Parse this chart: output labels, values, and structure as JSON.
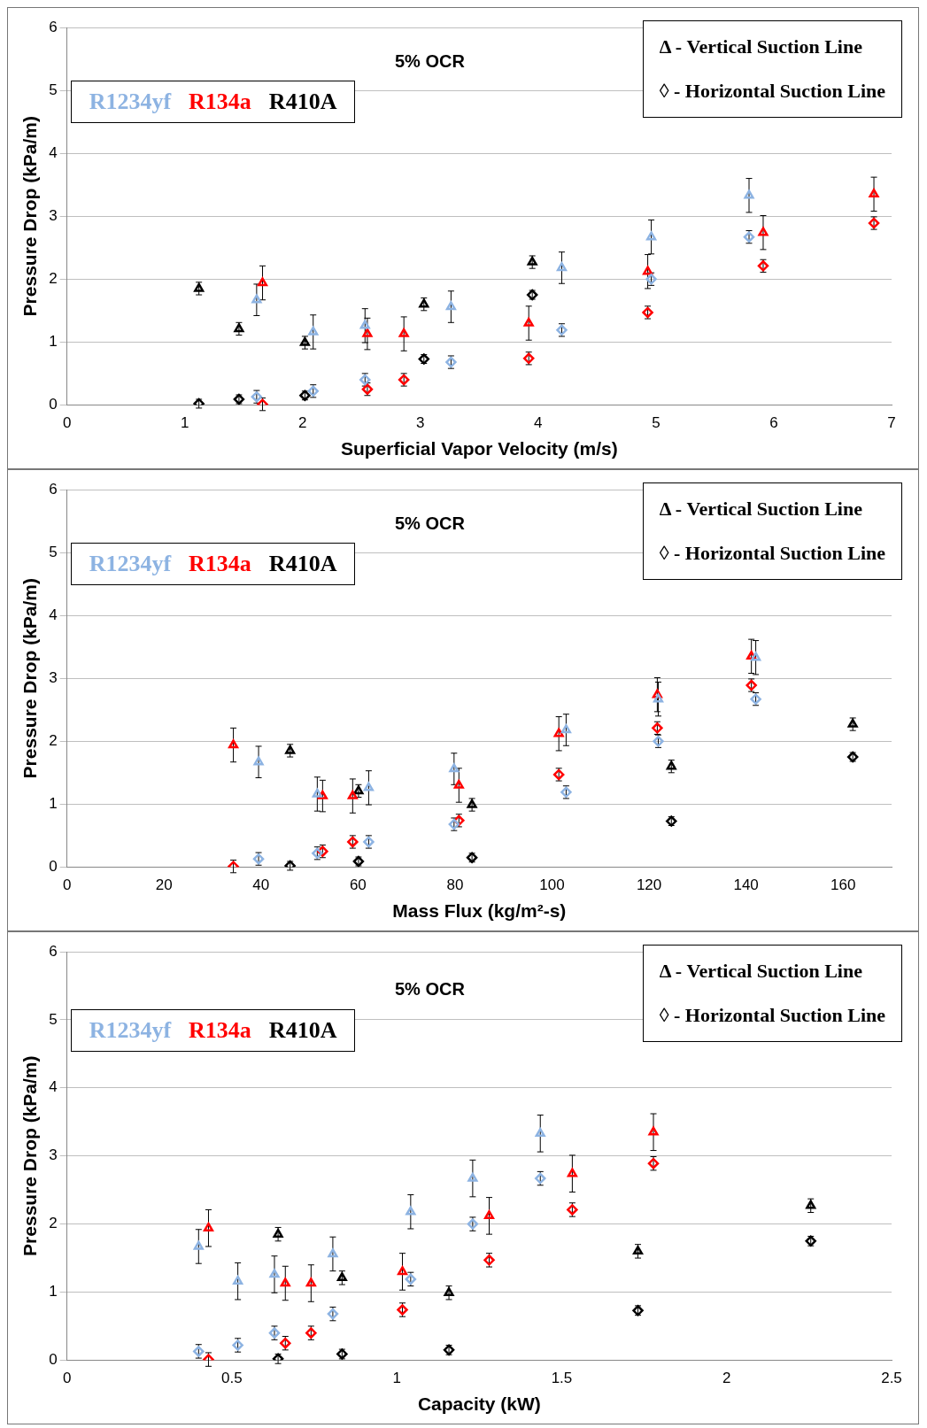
{
  "chart_data": [
    {
      "type": "scatter",
      "xlabel": "Superficial Vapor Velocity (m/s)",
      "ylabel": "Pressure Drop (kPa/m)",
      "xlim": [
        0,
        7
      ],
      "xticks": [
        0,
        1,
        2,
        3,
        4,
        5,
        6,
        7
      ],
      "ylim": [
        0,
        6
      ],
      "yticks": [
        0,
        1,
        2,
        3,
        4,
        5,
        6
      ],
      "grid": "y",
      "legend": "top left",
      "annotations": [
        "5% OCR",
        "Δ - Vertical Suction Line",
        "◊ - Horizontal Suction Line"
      ],
      "series": [
        {
          "name": "R1234yf",
          "color": "#8db3e2",
          "marker": "triangle",
          "x": [
            1.61,
            2.09,
            2.53,
            3.26,
            4.2,
            4.96,
            5.79
          ],
          "values": [
            1.67,
            1.16,
            1.26,
            1.56,
            2.18,
            2.67,
            3.33
          ],
          "errors": [
            0.25,
            0.27,
            0.27,
            0.25,
            0.25,
            0.27,
            0.27
          ]
        },
        {
          "color": "#8db3e2",
          "marker": "diamond",
          "x": [
            1.61,
            2.09,
            2.53,
            3.26,
            4.2,
            4.96,
            5.79
          ],
          "values": [
            0.13,
            0.22,
            0.4,
            0.68,
            1.19,
            2.0,
            2.67
          ],
          "errors": [
            0.1,
            0.1,
            0.1,
            0.1,
            0.1,
            0.1,
            0.1
          ]
        },
        {
          "name": "R134a",
          "color": "#ff0000",
          "marker": "triangle",
          "x": [
            1.66,
            2.55,
            2.86,
            3.92,
            4.93,
            5.91,
            6.85
          ],
          "values": [
            1.94,
            1.13,
            1.13,
            1.3,
            2.12,
            2.74,
            3.35
          ],
          "errors": [
            0.27,
            0.25,
            0.27,
            0.27,
            0.27,
            0.27,
            0.27
          ]
        },
        {
          "color": "#ff0000",
          "marker": "diamond",
          "x": [
            1.66,
            2.55,
            2.86,
            3.92,
            4.93,
            5.91,
            6.85
          ],
          "values": [
            0.01,
            0.25,
            0.4,
            0.74,
            1.47,
            2.21,
            2.89
          ],
          "errors": [
            0.1,
            0.1,
            0.1,
            0.1,
            0.1,
            0.1,
            0.1
          ]
        },
        {
          "name": "R410A",
          "color": "#000000",
          "marker": "triangle",
          "x": [
            1.12,
            1.46,
            2.02,
            3.03,
            3.95
          ],
          "values": [
            1.85,
            1.21,
            0.99,
            1.6,
            2.27
          ],
          "errors": [
            0.1,
            0.1,
            0.1,
            0.1,
            0.1
          ]
        },
        {
          "color": "#000000",
          "marker": "diamond",
          "x": [
            1.12,
            1.46,
            2.02,
            3.03,
            3.95
          ],
          "values": [
            0.02,
            0.09,
            0.15,
            0.73,
            1.75
          ],
          "errors": [
            0.07,
            0.07,
            0.07,
            0.07,
            0.07
          ]
        }
      ]
    },
    {
      "type": "scatter",
      "xlabel": "Mass Flux (kg/m²-s)",
      "ylabel": "Pressure Drop (kPa/m)",
      "xlim": [
        0,
        170
      ],
      "xticks": [
        0,
        20,
        40,
        60,
        80,
        100,
        120,
        140,
        160
      ],
      "ylim": [
        0,
        6
      ],
      "yticks": [
        0,
        1,
        2,
        3,
        4,
        5,
        6
      ],
      "grid": "y",
      "legend": "top left",
      "annotations": [
        "5% OCR",
        "Δ - Vertical Suction Line",
        "◊ - Horizontal Suction Line"
      ],
      "series": [
        {
          "name": "R1234yf",
          "color": "#8db3e2",
          "marker": "triangle",
          "x": [
            39.5,
            51.6,
            62.2,
            79.8,
            102.9,
            121.9,
            142
          ],
          "values": [
            1.67,
            1.16,
            1.26,
            1.56,
            2.18,
            2.67,
            3.33
          ],
          "errors": [
            0.25,
            0.27,
            0.27,
            0.25,
            0.25,
            0.27,
            0.27
          ]
        },
        {
          "color": "#8db3e2",
          "marker": "diamond",
          "x": [
            39.5,
            51.6,
            62.2,
            79.8,
            102.9,
            121.9,
            142
          ],
          "values": [
            0.13,
            0.22,
            0.4,
            0.68,
            1.19,
            2.0,
            2.67
          ],
          "errors": [
            0.1,
            0.1,
            0.1,
            0.1,
            0.1,
            0.1,
            0.1
          ]
        },
        {
          "name": "R134a",
          "color": "#ff0000",
          "marker": "triangle",
          "x": [
            34.3,
            52.7,
            58.9,
            80.8,
            101.4,
            121.7,
            141.1
          ],
          "values": [
            1.94,
            1.13,
            1.13,
            1.3,
            2.12,
            2.74,
            3.35
          ],
          "errors": [
            0.27,
            0.25,
            0.27,
            0.27,
            0.27,
            0.27,
            0.27
          ]
        },
        {
          "color": "#ff0000",
          "marker": "diamond",
          "x": [
            34.3,
            52.7,
            58.9,
            80.8,
            101.4,
            121.7,
            141.1
          ],
          "values": [
            0.01,
            0.25,
            0.4,
            0.74,
            1.47,
            2.21,
            2.89
          ],
          "errors": [
            0.1,
            0.1,
            0.1,
            0.1,
            0.1,
            0.1,
            0.1
          ]
        },
        {
          "name": "R410A",
          "color": "#000000",
          "marker": "triangle",
          "x": [
            46,
            60.1,
            83.5,
            124.6,
            162
          ],
          "values": [
            1.85,
            1.21,
            0.99,
            1.6,
            2.27
          ],
          "errors": [
            0.1,
            0.1,
            0.1,
            0.1,
            0.1
          ]
        },
        {
          "color": "#000000",
          "marker": "diamond",
          "x": [
            46,
            60.1,
            83.5,
            124.6,
            162
          ],
          "values": [
            0.02,
            0.09,
            0.15,
            0.73,
            1.75
          ],
          "errors": [
            0.07,
            0.07,
            0.07,
            0.07,
            0.07
          ]
        }
      ]
    },
    {
      "type": "scatter",
      "xlabel": "Capacity (kW)",
      "ylabel": "Pressure Drop (kPa/m)",
      "xlim": [
        0,
        2.5
      ],
      "xticks": [
        0,
        0.5,
        1,
        1.5,
        2,
        2.5
      ],
      "ylim": [
        0,
        6
      ],
      "yticks": [
        0,
        1,
        2,
        3,
        4,
        5,
        6
      ],
      "grid": "y",
      "legend": "top left",
      "annotations": [
        "5% OCR",
        "Δ - Vertical Suction Line",
        "◊ - Horizontal Suction Line"
      ],
      "series": [
        {
          "name": "R1234yf",
          "color": "#8db3e2",
          "marker": "triangle",
          "x": [
            0.399,
            0.518,
            0.629,
            0.806,
            1.042,
            1.23,
            1.435
          ],
          "values": [
            1.67,
            1.16,
            1.26,
            1.56,
            2.18,
            2.67,
            3.33
          ],
          "errors": [
            0.25,
            0.27,
            0.27,
            0.25,
            0.25,
            0.27,
            0.27
          ]
        },
        {
          "color": "#8db3e2",
          "marker": "diamond",
          "x": [
            0.399,
            0.518,
            0.629,
            0.806,
            1.042,
            1.23,
            1.435
          ],
          "values": [
            0.13,
            0.22,
            0.4,
            0.68,
            1.19,
            2.0,
            2.67
          ],
          "errors": [
            0.1,
            0.1,
            0.1,
            0.1,
            0.1,
            0.1,
            0.1
          ]
        },
        {
          "name": "R134a",
          "color": "#ff0000",
          "marker": "triangle",
          "x": [
            0.429,
            0.662,
            0.74,
            1.017,
            1.28,
            1.532,
            1.778
          ],
          "values": [
            1.94,
            1.13,
            1.13,
            1.3,
            2.12,
            2.74,
            3.35
          ],
          "errors": [
            0.27,
            0.25,
            0.27,
            0.27,
            0.27,
            0.27,
            0.27
          ]
        },
        {
          "color": "#ff0000",
          "marker": "diamond",
          "x": [
            0.429,
            0.662,
            0.74,
            1.017,
            1.28,
            1.532,
            1.778
          ],
          "values": [
            0.01,
            0.25,
            0.4,
            0.74,
            1.47,
            2.21,
            2.89
          ],
          "errors": [
            0.1,
            0.1,
            0.1,
            0.1,
            0.1,
            0.1,
            0.1
          ]
        },
        {
          "name": "R410A",
          "color": "#000000",
          "marker": "triangle",
          "x": [
            0.64,
            0.834,
            1.158,
            1.731,
            2.255
          ],
          "values": [
            1.85,
            1.21,
            0.99,
            1.6,
            2.27
          ],
          "errors": [
            0.1,
            0.1,
            0.1,
            0.1,
            0.1
          ]
        },
        {
          "color": "#000000",
          "marker": "diamond",
          "x": [
            0.64,
            0.834,
            1.158,
            1.731,
            2.255
          ],
          "values": [
            0.02,
            0.09,
            0.15,
            0.73,
            1.75
          ],
          "errors": [
            0.07,
            0.07,
            0.07,
            0.07,
            0.07
          ]
        }
      ]
    }
  ]
}
